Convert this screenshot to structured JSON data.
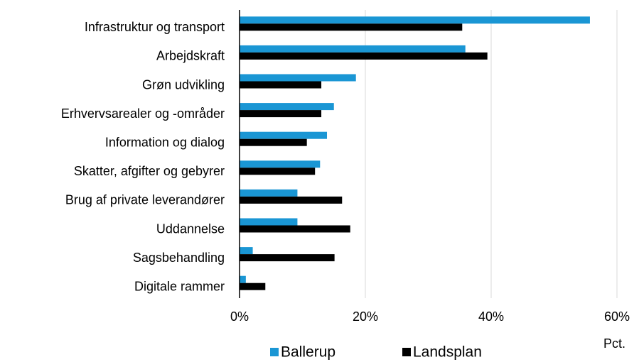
{
  "chart_data": {
    "type": "bar",
    "orientation": "horizontal",
    "categories": [
      "Infrastruktur og transport",
      "Arbejdskraft",
      "Grøn udvikling",
      "Erhvervsarealer og -områder",
      "Information og dialog",
      "Skatter, afgifter og gebyrer",
      "Brug af private leverandører",
      "Uddannelse",
      "Sagsbehandling",
      "Digitale rammer"
    ],
    "series": [
      {
        "name": "Ballerup",
        "color": "#1a96d4",
        "values": [
          55.7,
          35.9,
          18.5,
          15.0,
          13.9,
          12.8,
          9.2,
          9.2,
          2.1,
          1.0
        ]
      },
      {
        "name": "Landsplan",
        "color": "#000000",
        "values": [
          35.4,
          39.4,
          13.0,
          13.0,
          10.7,
          12.0,
          16.3,
          17.6,
          15.1,
          4.1
        ]
      }
    ],
    "xlabel": "Pct.",
    "xlim": [
      0,
      60
    ],
    "xticks": [
      {
        "value": 0,
        "label": "0%"
      },
      {
        "value": 20,
        "label": "20%"
      },
      {
        "value": 40,
        "label": "40%"
      },
      {
        "value": 60,
        "label": "60%"
      }
    ],
    "grid": true,
    "legend": "bottom"
  }
}
